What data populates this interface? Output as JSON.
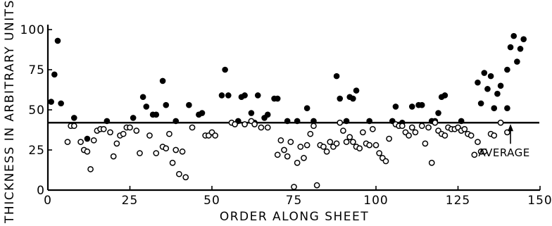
{
  "chart_data": {
    "type": "scatter",
    "title": "",
    "xlabel": "ORDER ALONG SHEET",
    "ylabel": "THICKNESS IN ARBITRARY UNITS",
    "xlim": [
      0,
      150
    ],
    "ylim": [
      0,
      100
    ],
    "x_ticks": [
      "0",
      "25",
      "50",
      "75",
      "100",
      "125",
      "150"
    ],
    "y_ticks": [
      "0",
      "25",
      "50",
      "75",
      "100"
    ],
    "grid": false,
    "average": {
      "value": 42,
      "label": "AVERAGE",
      "pointer_x": 141
    },
    "series": [
      {
        "marker": "filled",
        "points": [
          [
            1,
            55
          ],
          [
            2,
            72
          ],
          [
            3,
            93
          ],
          [
            4,
            54
          ],
          [
            8,
            45
          ],
          [
            12,
            32
          ],
          [
            18,
            43
          ],
          [
            26,
            45
          ],
          [
            29,
            58
          ],
          [
            30,
            52
          ],
          [
            32,
            47
          ],
          [
            33,
            47
          ],
          [
            35,
            68
          ],
          [
            36,
            53
          ],
          [
            39,
            43
          ],
          [
            43,
            53
          ],
          [
            46,
            47
          ],
          [
            47,
            48
          ],
          [
            53,
            59
          ],
          [
            54,
            75
          ],
          [
            55,
            59
          ],
          [
            58,
            43
          ],
          [
            59,
            58
          ],
          [
            60,
            59
          ],
          [
            62,
            48
          ],
          [
            63,
            42
          ],
          [
            64,
            59
          ],
          [
            66,
            45
          ],
          [
            67,
            47
          ],
          [
            69,
            57
          ],
          [
            70,
            57
          ],
          [
            73,
            43
          ],
          [
            76,
            43
          ],
          [
            79,
            51
          ],
          [
            81,
            43
          ],
          [
            88,
            71
          ],
          [
            89,
            57
          ],
          [
            91,
            43
          ],
          [
            92,
            58
          ],
          [
            93,
            57
          ],
          [
            94,
            62
          ],
          [
            98,
            43
          ],
          [
            105,
            43
          ],
          [
            106,
            52
          ],
          [
            108,
            42
          ],
          [
            111,
            52
          ],
          [
            113,
            53
          ],
          [
            114,
            53
          ],
          [
            117,
            43
          ],
          [
            118,
            43
          ],
          [
            119,
            48
          ],
          [
            120,
            58
          ],
          [
            121,
            59
          ],
          [
            126,
            43
          ],
          [
            131,
            67
          ],
          [
            132,
            54
          ],
          [
            133,
            73
          ],
          [
            134,
            63
          ],
          [
            135,
            71
          ],
          [
            136,
            51
          ],
          [
            137,
            60
          ],
          [
            138,
            65
          ],
          [
            140,
            51
          ],
          [
            140,
            75
          ],
          [
            141,
            89
          ],
          [
            142,
            96
          ],
          [
            143,
            80
          ],
          [
            144,
            88
          ],
          [
            145,
            94
          ]
        ]
      },
      {
        "marker": "open",
        "points": [
          [
            6,
            30
          ],
          [
            7,
            40
          ],
          [
            8,
            40
          ],
          [
            10,
            30
          ],
          [
            11,
            25
          ],
          [
            12,
            24
          ],
          [
            13,
            13
          ],
          [
            14,
            31
          ],
          [
            15,
            37
          ],
          [
            16,
            38
          ],
          [
            17,
            38
          ],
          [
            19,
            36
          ],
          [
            20,
            21
          ],
          [
            21,
            29
          ],
          [
            22,
            34
          ],
          [
            23,
            35
          ],
          [
            24,
            39
          ],
          [
            25,
            39
          ],
          [
            27,
            37
          ],
          [
            28,
            23
          ],
          [
            31,
            34
          ],
          [
            33,
            23
          ],
          [
            35,
            27
          ],
          [
            36,
            26
          ],
          [
            37,
            35
          ],
          [
            38,
            17
          ],
          [
            39,
            25
          ],
          [
            40,
            10
          ],
          [
            41,
            24
          ],
          [
            42,
            8
          ],
          [
            44,
            39
          ],
          [
            48,
            34
          ],
          [
            49,
            34
          ],
          [
            50,
            36
          ],
          [
            51,
            34
          ],
          [
            56,
            42
          ],
          [
            57,
            41
          ],
          [
            60,
            41
          ],
          [
            62,
            43
          ],
          [
            63,
            41
          ],
          [
            65,
            39
          ],
          [
            67,
            39
          ],
          [
            70,
            22
          ],
          [
            71,
            31
          ],
          [
            72,
            25
          ],
          [
            73,
            21
          ],
          [
            74,
            30
          ],
          [
            75,
            2
          ],
          [
            76,
            17
          ],
          [
            77,
            27
          ],
          [
            78,
            20
          ],
          [
            79,
            28
          ],
          [
            80,
            35
          ],
          [
            81,
            40
          ],
          [
            82,
            3
          ],
          [
            83,
            28
          ],
          [
            84,
            27
          ],
          [
            85,
            24
          ],
          [
            86,
            30
          ],
          [
            87,
            27
          ],
          [
            88,
            29
          ],
          [
            89,
            42
          ],
          [
            90,
            37
          ],
          [
            91,
            30
          ],
          [
            92,
            33
          ],
          [
            93,
            30
          ],
          [
            94,
            27
          ],
          [
            95,
            26
          ],
          [
            96,
            36
          ],
          [
            97,
            29
          ],
          [
            98,
            28
          ],
          [
            99,
            38
          ],
          [
            100,
            28
          ],
          [
            101,
            23
          ],
          [
            102,
            20
          ],
          [
            103,
            18
          ],
          [
            104,
            32
          ],
          [
            106,
            41
          ],
          [
            107,
            40
          ],
          [
            108,
            40
          ],
          [
            109,
            36
          ],
          [
            110,
            34
          ],
          [
            111,
            39
          ],
          [
            112,
            36
          ],
          [
            114,
            40
          ],
          [
            115,
            29
          ],
          [
            116,
            39
          ],
          [
            117,
            17
          ],
          [
            118,
            42
          ],
          [
            119,
            37
          ],
          [
            120,
            35
          ],
          [
            121,
            34
          ],
          [
            122,
            39
          ],
          [
            123,
            38
          ],
          [
            124,
            38
          ],
          [
            125,
            39
          ],
          [
            126,
            37
          ],
          [
            127,
            38
          ],
          [
            128,
            35
          ],
          [
            129,
            34
          ],
          [
            130,
            22
          ],
          [
            131,
            30
          ],
          [
            132,
            24
          ],
          [
            133,
            24
          ],
          [
            135,
            35
          ],
          [
            136,
            34
          ],
          [
            138,
            42
          ],
          [
            140,
            36
          ]
        ]
      }
    ]
  }
}
